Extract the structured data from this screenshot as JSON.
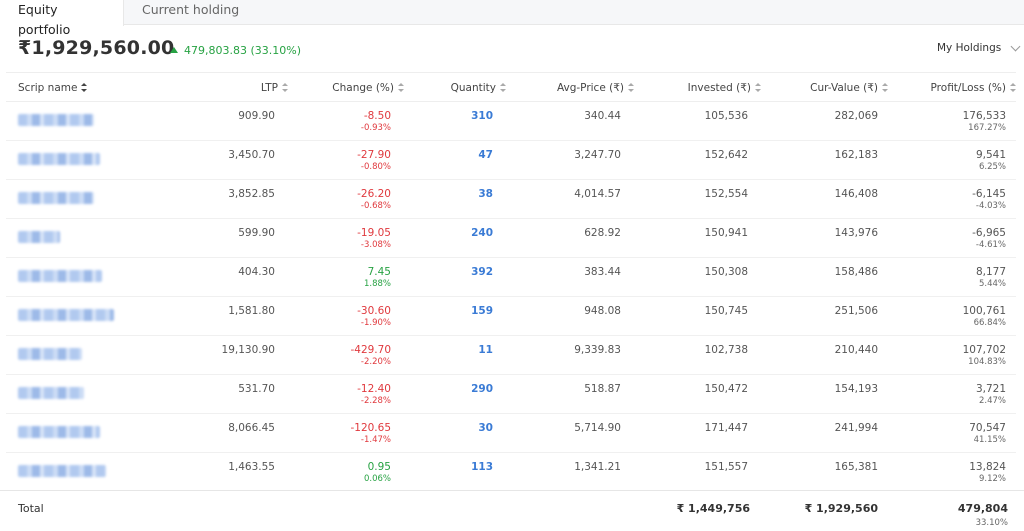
{
  "tabs": [
    {
      "label": "Equity portfolio",
      "active": true
    },
    {
      "label": "Current holding",
      "active": false
    }
  ],
  "summary": {
    "total_value": "₹1,929,560.00",
    "gain": "479,803.83 (33.10%)"
  },
  "dropdown": {
    "selected": "My Holdings"
  },
  "columns": [
    "Scrip name",
    "LTP",
    "Change (%)",
    "Quantity",
    "Avg-Price (₹)",
    "Invested (₹)",
    "Cur-Value (₹)",
    "Profit/Loss (%)"
  ],
  "rows": [
    {
      "ltp": "909.90",
      "change": "-8.50",
      "change_pct": "-0.93%",
      "change_dir": "neg",
      "qty": "310",
      "avg": "340.44",
      "invested": "105,536",
      "cur": "282,069",
      "pl": "176,533",
      "pl_pct": "167.27%"
    },
    {
      "ltp": "3,450.70",
      "change": "-27.90",
      "change_pct": "-0.80%",
      "change_dir": "neg",
      "qty": "47",
      "avg": "3,247.70",
      "invested": "152,642",
      "cur": "162,183",
      "pl": "9,541",
      "pl_pct": "6.25%"
    },
    {
      "ltp": "3,852.85",
      "change": "-26.20",
      "change_pct": "-0.68%",
      "change_dir": "neg",
      "qty": "38",
      "avg": "4,014.57",
      "invested": "152,554",
      "cur": "146,408",
      "pl": "-6,145",
      "pl_pct": "-4.03%"
    },
    {
      "ltp": "599.90",
      "change": "-19.05",
      "change_pct": "-3.08%",
      "change_dir": "neg",
      "qty": "240",
      "avg": "628.92",
      "invested": "150,941",
      "cur": "143,976",
      "pl": "-6,965",
      "pl_pct": "-4.61%"
    },
    {
      "ltp": "404.30",
      "change": "7.45",
      "change_pct": "1.88%",
      "change_dir": "pos",
      "qty": "392",
      "avg": "383.44",
      "invested": "150,308",
      "cur": "158,486",
      "pl": "8,177",
      "pl_pct": "5.44%"
    },
    {
      "ltp": "1,581.80",
      "change": "-30.60",
      "change_pct": "-1.90%",
      "change_dir": "neg",
      "qty": "159",
      "avg": "948.08",
      "invested": "150,745",
      "cur": "251,506",
      "pl": "100,761",
      "pl_pct": "66.84%"
    },
    {
      "ltp": "19,130.90",
      "change": "-429.70",
      "change_pct": "-2.20%",
      "change_dir": "neg",
      "qty": "11",
      "avg": "9,339.83",
      "invested": "102,738",
      "cur": "210,440",
      "pl": "107,702",
      "pl_pct": "104.83%"
    },
    {
      "ltp": "531.70",
      "change": "-12.40",
      "change_pct": "-2.28%",
      "change_dir": "neg",
      "qty": "290",
      "avg": "518.87",
      "invested": "150,472",
      "cur": "154,193",
      "pl": "3,721",
      "pl_pct": "2.47%"
    },
    {
      "ltp": "8,066.45",
      "change": "-120.65",
      "change_pct": "-1.47%",
      "change_dir": "neg",
      "qty": "30",
      "avg": "5,714.90",
      "invested": "171,447",
      "cur": "241,994",
      "pl": "70,547",
      "pl_pct": "41.15%"
    },
    {
      "ltp": "1,463.55",
      "change": "0.95",
      "change_pct": "0.06%",
      "change_dir": "pos",
      "qty": "113",
      "avg": "1,341.21",
      "invested": "151,557",
      "cur": "165,381",
      "pl": "13,824",
      "pl_pct": "9.12%"
    }
  ],
  "footer": {
    "label": "Total",
    "invested": "₹ 1,449,756",
    "cur": "₹ 1,929,560",
    "pl": "479,804",
    "pl_pct": "33.10%"
  },
  "colors": {
    "positive": "#27a243",
    "negative": "#e0393e",
    "quantity": "#3a7bd5"
  }
}
